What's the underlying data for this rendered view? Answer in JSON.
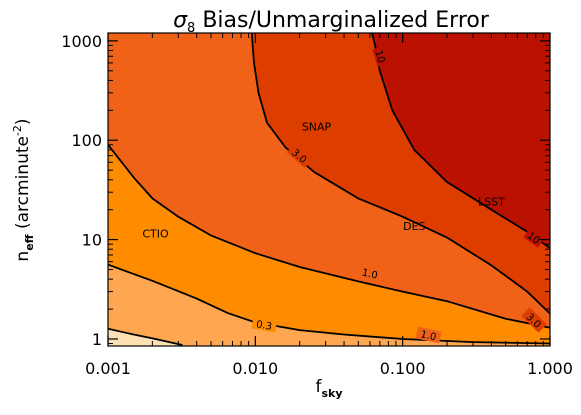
{
  "chart_data": {
    "type": "contour",
    "title": {
      "symbol": "σ",
      "subscript": "8",
      "text": " Bias/Unmarginalized Error"
    },
    "xlabel": {
      "base": "f",
      "sub": "sky"
    },
    "ylabel": {
      "base": "n",
      "sub": "eff",
      "mid": " (arcminute",
      "sup": "-2",
      "end": ")"
    },
    "x_scale": "log",
    "y_scale": "log",
    "xlim": [
      0.001,
      1.0
    ],
    "ylim": [
      0.85,
      1200
    ],
    "x_ticks": [
      {
        "value": 0.001,
        "label": "0.001"
      },
      {
        "value": 0.01,
        "label": "0.010"
      },
      {
        "value": 0.1,
        "label": "0.100"
      },
      {
        "value": 1.0,
        "label": "1.000"
      }
    ],
    "y_ticks": [
      {
        "value": 1,
        "label": "1"
      },
      {
        "value": 10,
        "label": "10"
      },
      {
        "value": 100,
        "label": "100"
      },
      {
        "value": 1000,
        "label": "1000"
      }
    ],
    "levels": [
      {
        "value": 0.1,
        "label": "",
        "points": [
          [
            0.001,
            1.27
          ],
          [
            0.00145,
            1.12
          ],
          [
            0.0021,
            1.0
          ],
          [
            0.0027,
            0.92
          ],
          [
            0.0032,
            0.87
          ]
        ]
      },
      {
        "value": 0.3,
        "label": "0.3",
        "label_at": [
          0.0115,
          1.4
        ],
        "points": [
          [
            0.001,
            5.6
          ],
          [
            0.002,
            3.85
          ],
          [
            0.004,
            2.55
          ],
          [
            0.0065,
            1.82
          ],
          [
            0.01,
            1.47
          ],
          [
            0.02,
            1.23
          ],
          [
            0.04,
            1.11
          ],
          [
            0.1,
            1.0
          ],
          [
            0.3,
            0.93
          ],
          [
            1.0,
            0.9
          ]
        ]
      },
      {
        "value": 1.0,
        "label": "1.0",
        "label_at": [
          0.06,
          4.6
        ],
        "label2": "1.0",
        "label2_at": [
          0.15,
          1.1
        ],
        "points": [
          [
            0.001,
            90
          ],
          [
            0.0015,
            42
          ],
          [
            0.002,
            26
          ],
          [
            0.003,
            17
          ],
          [
            0.005,
            11
          ],
          [
            0.01,
            7.3
          ],
          [
            0.02,
            5.3
          ],
          [
            0.05,
            3.8
          ],
          [
            0.1,
            3.0
          ],
          [
            0.2,
            2.4
          ],
          [
            0.5,
            1.6
          ],
          [
            1.0,
            1.3
          ]
        ]
      },
      {
        "value": 3.0,
        "label": "3.0",
        "label_at": [
          0.02,
          70
        ],
        "label2": "3.0",
        "label2_at": [
          0.78,
          1.55
        ],
        "points": [
          [
            0.00945,
            1200
          ],
          [
            0.0098,
            600
          ],
          [
            0.0105,
            300
          ],
          [
            0.012,
            150
          ],
          [
            0.016,
            85
          ],
          [
            0.025,
            48
          ],
          [
            0.05,
            26
          ],
          [
            0.1,
            17
          ],
          [
            0.2,
            10.5
          ],
          [
            0.4,
            5.5
          ],
          [
            0.7,
            3.0
          ],
          [
            1.0,
            1.8
          ]
        ]
      },
      {
        "value": 10,
        "label": "10",
        "label_at": [
          0.071,
          700
        ],
        "label2": "10",
        "label2_at": [
          0.78,
          10.5
        ],
        "points": [
          [
            0.062,
            1200
          ],
          [
            0.065,
            900
          ],
          [
            0.07,
            500
          ],
          [
            0.085,
            200
          ],
          [
            0.12,
            80
          ],
          [
            0.2,
            38
          ],
          [
            0.4,
            20
          ],
          [
            0.7,
            12
          ],
          [
            1.0,
            8.2
          ]
        ]
      }
    ],
    "fills": [
      {
        "range": "> 10",
        "color": "#bb1100"
      },
      {
        "range": "3 – 10",
        "color": "#dd3e00"
      },
      {
        "range": "1 – 3",
        "color": "#f06218"
      },
      {
        "range": "0.3 – 1",
        "color": "#ff8c00"
      },
      {
        "range": "0.1 – 0.3",
        "color": "#ffa650"
      },
      {
        "range": "< 0.1",
        "color": "#fde0b4"
      }
    ],
    "annotations": [
      {
        "text": "SNAP",
        "x": 0.026,
        "y": 125
      },
      {
        "text": "LSST",
        "x": 0.4,
        "y": 22
      },
      {
        "text": "DES",
        "x": 0.12,
        "y": 12.5
      },
      {
        "text": "CTIO",
        "x": 0.0021,
        "y": 10.5
      }
    ]
  }
}
